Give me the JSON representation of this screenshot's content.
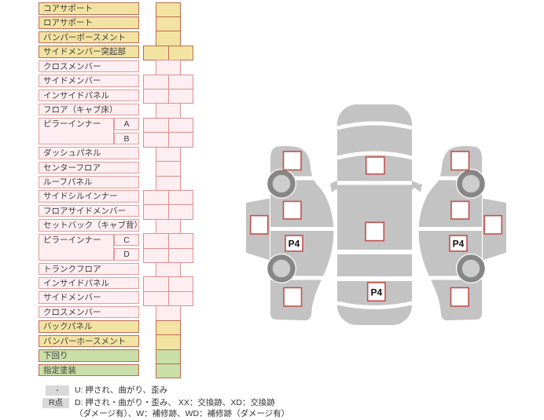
{
  "colors": {
    "yellow_bg": "#f3e3a2",
    "pink_bg": "#fdeef1",
    "green_bg": "#cadfa8",
    "dark_border": "#bd6a50",
    "pink_border": "#e49a9a",
    "checkbox_border": "#c0504d",
    "car_body_gray": "#c3c3c3",
    "wheel_ring": "#868686",
    "wheel_center": "#cdcdcd",
    "legend_key_bg": "#d9d9d9"
  },
  "table": {
    "rows": [
      {
        "label": "コアサポート",
        "color": "yellow",
        "cells": 1
      },
      {
        "label": "ロアサポート",
        "color": "yellow",
        "cells": 1
      },
      {
        "label": "バンパーポースメント",
        "color": "yellow",
        "cells": 1
      },
      {
        "label": "サイドメンバー突起部",
        "color": "yellow",
        "cells": 2
      },
      {
        "label": "クロスメンバー",
        "color": "pink",
        "cells": 1
      },
      {
        "label": "サイドメンバー",
        "color": "pink",
        "cells": 2
      },
      {
        "label": "インサイドパネル",
        "color": "pink",
        "cells": 2
      },
      {
        "label": "フロア（キャブ床）",
        "color": "pink",
        "cells": 1
      },
      {
        "label": "ピラーインナー",
        "sub": "A",
        "color": "pink",
        "cells": 2
      },
      {
        "sub": "B",
        "color": "pink",
        "cells": 2
      },
      {
        "label": "ダッシュパネル",
        "color": "pink",
        "cells": 1
      },
      {
        "label": "センターフロア",
        "color": "pink",
        "cells": 1
      },
      {
        "label": "ルーフパネル",
        "color": "pink",
        "cells": 1
      },
      {
        "label": "サイドシルインナー",
        "color": "pink",
        "cells": 2
      },
      {
        "label": "フロアサイドメンバー",
        "color": "pink",
        "cells": 2
      },
      {
        "label": "セットバック（キャブ背）",
        "color": "pink",
        "cells": 1
      },
      {
        "label": "ピラーインナー",
        "sub": "C",
        "color": "pink",
        "cells": 2
      },
      {
        "sub": "D",
        "color": "pink",
        "cells": 2
      },
      {
        "label": "トランクフロア",
        "color": "pink",
        "cells": 1
      },
      {
        "label": "インサイドパネル",
        "color": "pink",
        "cells": 2
      },
      {
        "label": "サイドメンバー",
        "color": "pink",
        "cells": 2
      },
      {
        "label": "クロスメンバー",
        "color": "pink",
        "cells": 1
      },
      {
        "label": "バックパネル",
        "color": "yellow",
        "cells": 1
      },
      {
        "label": "バンパーホースメント",
        "color": "yellow",
        "cells": 1
      },
      {
        "label": "下回り",
        "color": "green",
        "cells": 1
      },
      {
        "label": "指定塗装",
        "color": "green",
        "cells": 1
      }
    ]
  },
  "legend": {
    "rows": [
      {
        "key": "-",
        "text": "U: 押され、曲がり、歪み"
      },
      {
        "key": "R点",
        "text": "D: 押され・曲がり・歪み、 XX：交換跡、XD：交換跡"
      },
      {
        "key": "",
        "text": "（ダメージ有）、W：補修跡、WD：補修跡（ダメージ有）"
      }
    ]
  },
  "diagram": {
    "top_view": {
      "p4_label": "P4"
    },
    "left_side": {
      "p4_label": "P4"
    },
    "right_side": {
      "p4_label": "P4"
    }
  }
}
